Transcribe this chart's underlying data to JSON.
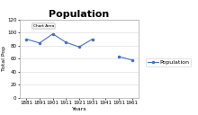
{
  "title": "Population",
  "ylabel": "Total Pop",
  "xlabel": "Years",
  "years": [
    1881,
    1891,
    1901,
    1911,
    1921,
    1931,
    1951,
    1961
  ],
  "values": [
    90,
    84,
    98,
    85,
    78,
    90,
    63,
    58
  ],
  "line_color": "#4472C4",
  "marker": "o",
  "marker_size": 1.5,
  "line_width": 0.8,
  "ylim": [
    0,
    120
  ],
  "yticks": [
    0,
    20,
    40,
    60,
    80,
    100,
    120
  ],
  "xticks": [
    1881,
    1891,
    1901,
    1911,
    1921,
    1931,
    1941,
    1951,
    1961
  ],
  "legend_label": "Population",
  "chart_area_label": "Chart Area",
  "bg_color": "#FFFFFF",
  "grid_color": "#D8D8D8",
  "title_fontsize": 8,
  "axis_label_fontsize": 4.5,
  "tick_fontsize": 4,
  "legend_fontsize": 4.5
}
